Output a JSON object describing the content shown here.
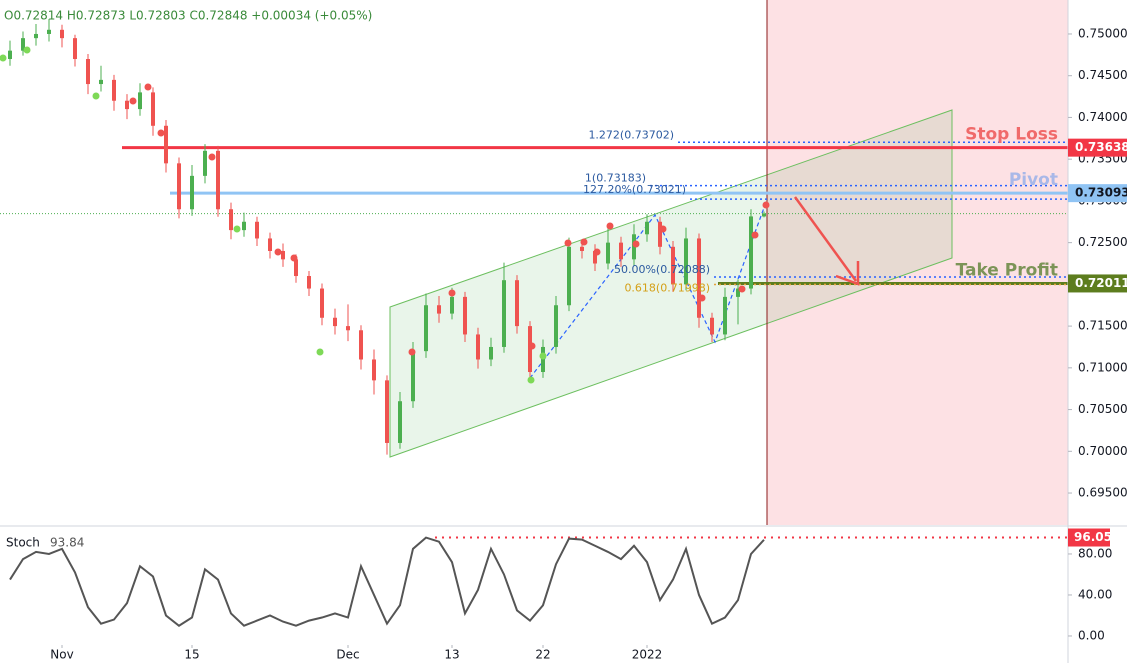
{
  "header": {
    "ohlc": "O0.72814 H0.72873 L0.72803 C0.72848 +0.00034 (+0.05%)"
  },
  "chart_data": [
    {
      "type": "candlestick",
      "up_color": "#4caf50",
      "down_color": "#ef5350",
      "candles": [
        [
          0.747,
          0.7492,
          0.7462,
          0.748
        ],
        [
          0.748,
          0.7503,
          0.7474,
          0.7495
        ],
        [
          0.7495,
          0.7512,
          0.7486,
          0.75
        ],
        [
          0.75,
          0.7518,
          0.7491,
          0.7505
        ],
        [
          0.7505,
          0.7511,
          0.7484,
          0.7495
        ],
        [
          0.7495,
          0.7499,
          0.7461,
          0.747
        ],
        [
          0.747,
          0.7476,
          0.7428,
          0.744
        ],
        [
          0.744,
          0.7462,
          0.7431,
          0.7445
        ],
        [
          0.7445,
          0.7451,
          0.7408,
          0.742
        ],
        [
          0.742,
          0.7428,
          0.7398,
          0.741
        ],
        [
          0.741,
          0.7441,
          0.7402,
          0.743
        ],
        [
          0.743,
          0.7436,
          0.7378,
          0.739
        ],
        [
          0.739,
          0.7397,
          0.7334,
          0.7345
        ],
        [
          0.7345,
          0.7352,
          0.7279,
          0.729
        ],
        [
          0.729,
          0.7343,
          0.7282,
          0.733
        ],
        [
          0.733,
          0.7368,
          0.7321,
          0.736
        ],
        [
          0.736,
          0.7366,
          0.7281,
          0.729
        ],
        [
          0.729,
          0.7298,
          0.7254,
          0.7265
        ],
        [
          0.7265,
          0.7286,
          0.7257,
          0.7275
        ],
        [
          0.7275,
          0.7281,
          0.7246,
          0.7255
        ],
        [
          0.7255,
          0.7262,
          0.7231,
          0.724
        ],
        [
          0.724,
          0.7249,
          0.7221,
          0.723
        ],
        [
          0.723,
          0.7236,
          0.7202,
          0.721
        ],
        [
          0.721,
          0.7216,
          0.7186,
          0.7195
        ],
        [
          0.7195,
          0.7201,
          0.7151,
          0.716
        ],
        [
          0.716,
          0.7171,
          0.714,
          0.715
        ],
        [
          0.715,
          0.7176,
          0.7132,
          0.7145
        ],
        [
          0.7145,
          0.7151,
          0.7098,
          0.711
        ],
        [
          0.711,
          0.7122,
          0.7068,
          0.7085
        ],
        [
          0.7085,
          0.7091,
          0.6996,
          0.701
        ],
        [
          0.701,
          0.7071,
          0.7003,
          0.706
        ],
        [
          0.706,
          0.7131,
          0.7052,
          0.712
        ],
        [
          0.712,
          0.7189,
          0.7112,
          0.7175
        ],
        [
          0.7175,
          0.7186,
          0.7154,
          0.7165
        ],
        [
          0.7165,
          0.7196,
          0.7158,
          0.7185
        ],
        [
          0.7185,
          0.7191,
          0.7131,
          0.714
        ],
        [
          0.714,
          0.7148,
          0.7099,
          0.711
        ],
        [
          0.711,
          0.7136,
          0.7102,
          0.7125
        ],
        [
          0.7125,
          0.7226,
          0.7118,
          0.7205
        ],
        [
          0.7205,
          0.7211,
          0.7141,
          0.715
        ],
        [
          0.715,
          0.7156,
          0.7086,
          0.7095
        ],
        [
          0.7095,
          0.7134,
          0.7088,
          0.7125
        ],
        [
          0.7125,
          0.7186,
          0.7117,
          0.7175
        ],
        [
          0.7175,
          0.7256,
          0.7168,
          0.7245
        ],
        [
          0.7245,
          0.7253,
          0.7231,
          0.724
        ],
        [
          0.724,
          0.7248,
          0.7216,
          0.7225
        ],
        [
          0.7225,
          0.7268,
          0.7218,
          0.725
        ],
        [
          0.725,
          0.7257,
          0.7221,
          0.723
        ],
        [
          0.723,
          0.7272,
          0.7222,
          0.726
        ],
        [
          0.726,
          0.7284,
          0.7251,
          0.7275
        ],
        [
          0.7275,
          0.7281,
          0.7236,
          0.7245
        ],
        [
          0.7245,
          0.7252,
          0.7191,
          0.72
        ],
        [
          0.72,
          0.7268,
          0.7193,
          0.7255
        ],
        [
          0.7255,
          0.7261,
          0.7148,
          0.716
        ],
        [
          0.716,
          0.7166,
          0.7131,
          0.714
        ],
        [
          0.714,
          0.7196,
          0.7133,
          0.7185
        ],
        [
          0.7185,
          0.7206,
          0.7152,
          0.7195
        ],
        [
          0.7195,
          0.729,
          0.7188,
          0.72814
        ],
        [
          0.72814,
          0.72873,
          0.72803,
          0.72848
        ]
      ],
      "ylim": [
        0.69117,
        0.75407
      ],
      "yticks": [
        {
          "value": 0.75,
          "label": "0.75000"
        },
        {
          "value": 0.745,
          "label": "0.74500"
        },
        {
          "value": 0.74,
          "label": "0.74000"
        },
        {
          "value": 0.735,
          "label": "0.73500"
        },
        {
          "value": 0.73,
          "label": "0.73000"
        },
        {
          "value": 0.725,
          "label": "0.72500"
        },
        {
          "value": 0.72,
          "label": "0.72000"
        },
        {
          "value": 0.715,
          "label": "0.71500"
        },
        {
          "value": 0.71,
          "label": "0.71000"
        },
        {
          "value": 0.705,
          "label": "0.70500"
        },
        {
          "value": 0.7,
          "label": "0.70000"
        },
        {
          "value": 0.695,
          "label": "0.69500"
        }
      ],
      "xticks": [
        {
          "value": 4,
          "label": "Nov"
        },
        {
          "value": 14,
          "label": "15"
        },
        {
          "value": 26,
          "label": "Dec"
        },
        {
          "value": 34,
          "label": "13"
        },
        {
          "value": 41,
          "label": "22"
        },
        {
          "value": 49,
          "label": "2022"
        }
      ],
      "levels": [
        {
          "name": "Stop Loss",
          "value": 0.73638,
          "color": "#f23645",
          "text_color": "#f06a6a"
        },
        {
          "name": "Pivot",
          "value": 0.73093,
          "color": "#90c4f4",
          "text_color": "#a9b8e8"
        },
        {
          "name": "Take Profit",
          "value": 0.72011,
          "color": "#5d7d1e",
          "text_color": "#7c9457"
        }
      ],
      "fibs": [
        {
          "label": "1.272(0.73702)",
          "value": 0.73702,
          "color": "#2962ff"
        },
        {
          "label": "1(0.73183)",
          "value": 0.73183,
          "color": "#2962ff"
        },
        {
          "label": "127.20%(0.73021)",
          "value": 0.73021,
          "color": "#2962ff"
        },
        {
          "label": "50.00%(0.72088)",
          "value": 0.72088,
          "color": "#2962ff"
        },
        {
          "label": "0.618(0.71998)",
          "value": 0.71998,
          "color": "#e6a23c"
        }
      ]
    },
    {
      "type": "line",
      "title": "Stoch",
      "color": "#555555",
      "values": [
        55,
        75,
        82,
        80,
        85,
        62,
        28,
        12,
        16,
        32,
        68,
        58,
        20,
        10,
        18,
        65,
        55,
        22,
        10,
        15,
        20,
        14,
        10,
        15,
        18,
        22,
        18,
        68,
        40,
        12,
        30,
        85,
        96,
        92,
        72,
        22,
        45,
        85,
        60,
        25,
        15,
        30,
        70,
        95,
        94,
        88,
        82,
        75,
        88,
        72,
        35,
        55,
        85,
        40,
        12,
        18,
        35,
        80,
        93.84
      ],
      "level": 96.05,
      "level_color": "#f23645",
      "ylim": [
        -8.8,
        106.3
      ],
      "yticks": [
        {
          "value": 80,
          "label": "80.00"
        },
        {
          "value": 40,
          "label": "40.00"
        },
        {
          "value": 0,
          "label": "0.00"
        }
      ]
    }
  ]
}
